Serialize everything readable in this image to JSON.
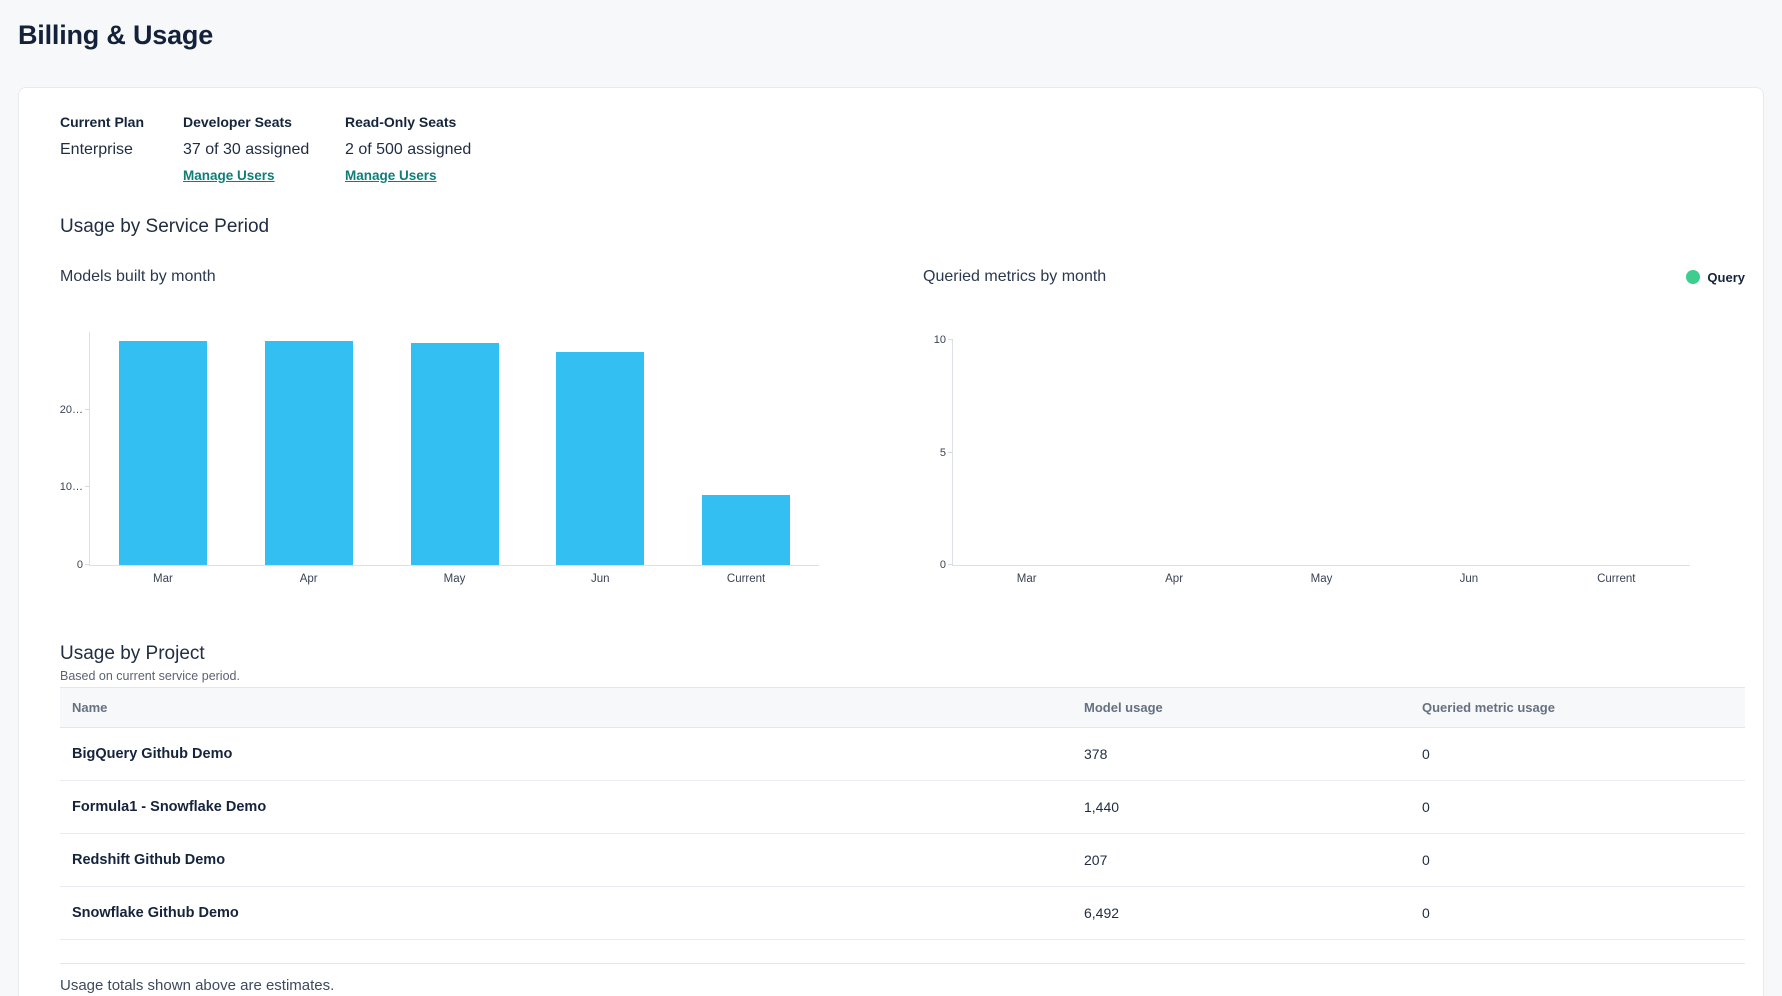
{
  "page": {
    "title": "Billing & Usage"
  },
  "plan": {
    "current_plan": {
      "label": "Current Plan",
      "value": "Enterprise"
    },
    "developer_seats": {
      "label": "Developer Seats",
      "value": "37 of 30 assigned",
      "link": "Manage Users"
    },
    "readonly_seats": {
      "label": "Read-Only Seats",
      "value": "2 of 500 assigned",
      "link": "Manage Users"
    }
  },
  "usage_section": {
    "heading": "Usage by Service Period"
  },
  "chart_data": [
    {
      "id": "models-built-by-month",
      "type": "bar",
      "title": "Models built by month",
      "categories": [
        "Mar",
        "Apr",
        "May",
        "Jun",
        "Current"
      ],
      "values": [
        28800,
        28800,
        28600,
        27400,
        9000
      ],
      "ylim": [
        0,
        30000
      ],
      "yticks": [
        {
          "value": 0,
          "label": "0"
        },
        {
          "value": 10000,
          "label": "10…"
        },
        {
          "value": 20000,
          "label": "20…"
        }
      ],
      "bar_color": "#33bff1",
      "grid": false,
      "legend": null,
      "note": "y-axis tick labels are truncated with ellipsis in the UI; values estimated from bar heights"
    },
    {
      "id": "queried-metrics-by-month",
      "type": "bar",
      "title": "Queried metrics by month",
      "categories": [
        "Mar",
        "Apr",
        "May",
        "Jun",
        "Current"
      ],
      "series": [
        {
          "name": "Query",
          "color": "#3dce8f",
          "values": [
            0,
            0,
            0,
            0,
            0
          ]
        }
      ],
      "ylim": [
        0,
        10
      ],
      "yticks": [
        {
          "value": 0,
          "label": "0"
        },
        {
          "value": 5,
          "label": "5"
        },
        {
          "value": 10,
          "label": "10"
        }
      ],
      "grid": false,
      "legend": {
        "position": "top-right",
        "entries": [
          {
            "label": "Query",
            "color": "#3dce8f"
          }
        ]
      }
    }
  ],
  "project_usage": {
    "heading": "Usage by Project",
    "subheading": "Based on current service period.",
    "columns": [
      "Name",
      "Model usage",
      "Queried metric usage"
    ],
    "rows": [
      {
        "name": "BigQuery Github Demo",
        "model_usage": "378",
        "queried_metric_usage": "0"
      },
      {
        "name": "Formula1 - Snowflake Demo",
        "model_usage": "1,440",
        "queried_metric_usage": "0"
      },
      {
        "name": "Redshift Github Demo",
        "model_usage": "207",
        "queried_metric_usage": "0"
      },
      {
        "name": "Snowflake Github Demo",
        "model_usage": "6,492",
        "queried_metric_usage": "0"
      }
    ]
  },
  "footer": {
    "note": "Usage totals shown above are estimates."
  },
  "colors": {
    "link_teal": "#0f7e79",
    "bar_blue": "#33bff1",
    "legend_green": "#3dce8f"
  }
}
